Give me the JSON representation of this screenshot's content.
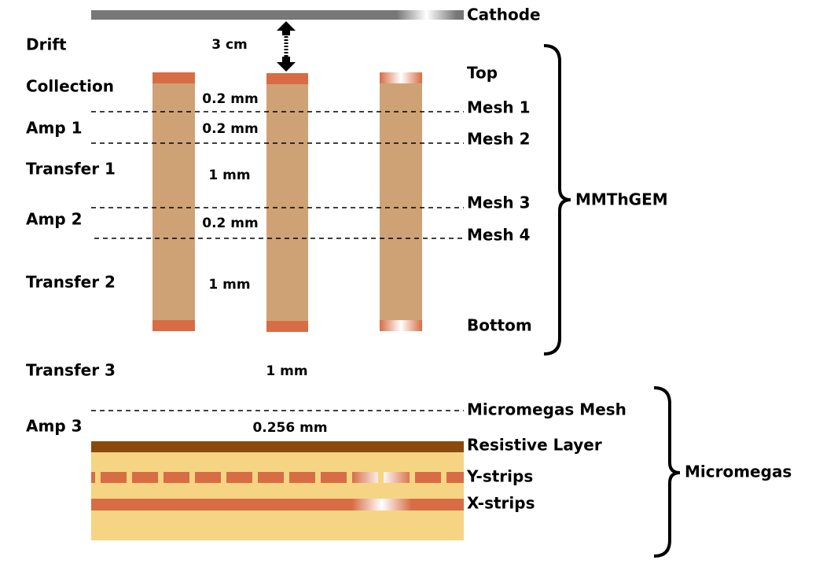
{
  "regions": [
    "Drift",
    "Collection",
    "Amp 1",
    "Transfer 1",
    "Amp 2",
    "Transfer 2",
    "Transfer 3",
    "Amp 3"
  ],
  "gaps": [
    "3 cm",
    "0.2 mm",
    "0.2 mm",
    "1 mm",
    "0.2 mm",
    "1 mm",
    "1 mm",
    "0.256 mm"
  ],
  "layers": [
    "Cathode",
    "Top",
    "Mesh 1",
    "Mesh 2",
    "Mesh 3",
    "Mesh 4",
    "Bottom",
    "Micromegas Mesh",
    "Resistive Layer",
    "Y-strips",
    "X-strips"
  ],
  "groups": [
    "MMThGEM",
    "Micromegas"
  ]
}
